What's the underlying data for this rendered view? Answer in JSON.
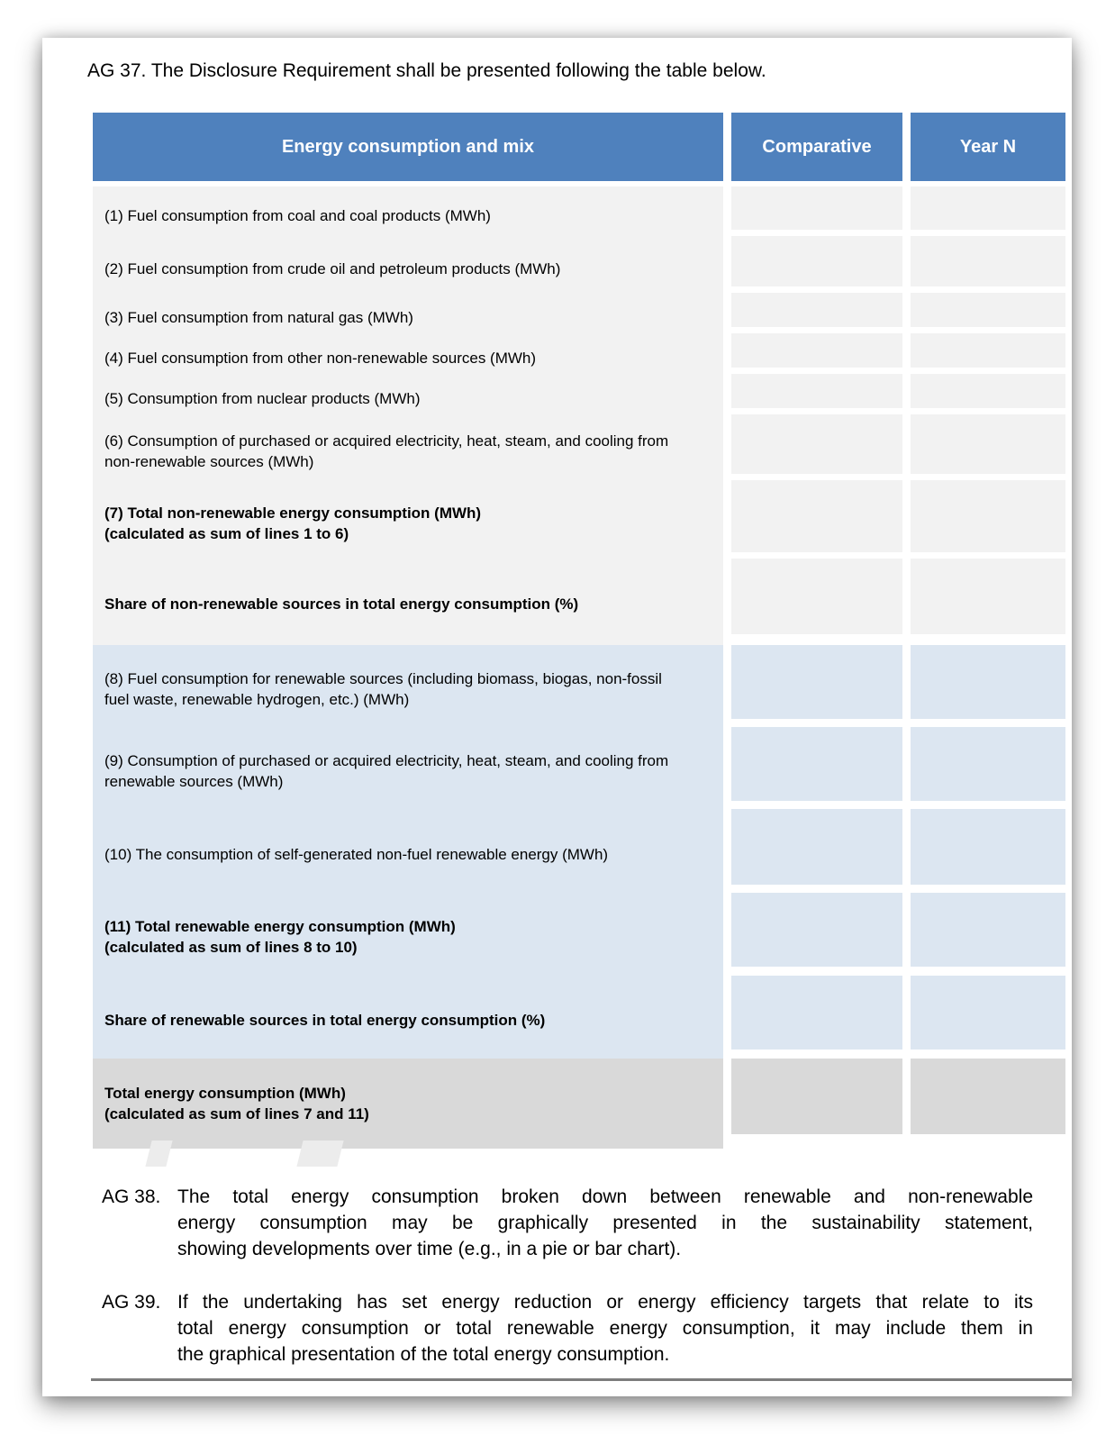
{
  "page": {
    "heading": "AG 37. The Disclosure Requirement shall be presented following the table below.",
    "table": {
      "columns": [
        "Energy consumption and mix",
        "Comparative",
        "Year N"
      ],
      "rows": [
        {
          "label": "(1) Fuel consumption from coal and coal products (MWh)",
          "sublabel": "",
          "bold": false,
          "section": "nonrenewable",
          "comparative": "",
          "year_n": ""
        },
        {
          "label": "(2) Fuel consumption from crude oil and petroleum products (MWh)",
          "sublabel": "",
          "bold": false,
          "section": "nonrenewable",
          "comparative": "",
          "year_n": ""
        },
        {
          "label": "(3) Fuel consumption from natural gas (MWh)",
          "sublabel": "",
          "bold": false,
          "section": "nonrenewable",
          "comparative": "",
          "year_n": ""
        },
        {
          "label": "(4) Fuel consumption from other non-renewable sources (MWh)",
          "sublabel": "",
          "bold": false,
          "section": "nonrenewable",
          "comparative": "",
          "year_n": ""
        },
        {
          "label": "(5) Consumption from nuclear products (MWh)",
          "sublabel": "",
          "bold": false,
          "section": "nonrenewable",
          "comparative": "",
          "year_n": ""
        },
        {
          "label": "(6) Consumption of purchased or acquired electricity, heat, steam, and cooling from non-renewable sources (MWh)",
          "sublabel": "",
          "bold": false,
          "section": "nonrenewable",
          "comparative": "",
          "year_n": ""
        },
        {
          "label": "(7) Total non-renewable energy consumption (MWh)",
          "sublabel": "(calculated as sum of lines 1 to 6)",
          "bold": true,
          "section": "nonrenewable",
          "comparative": "",
          "year_n": ""
        },
        {
          "label": "Share of non-renewable sources in total energy consumption (%)",
          "sublabel": "",
          "bold": true,
          "section": "nonrenewable",
          "comparative": "",
          "year_n": ""
        },
        {
          "label": "(8) Fuel consumption for renewable sources (including biomass, biogas, non-fossil fuel waste, renewable hydrogen, etc.) (MWh)",
          "sublabel": "",
          "bold": false,
          "section": "renewable",
          "comparative": "",
          "year_n": ""
        },
        {
          "label": "(9) Consumption of purchased or acquired electricity, heat, steam, and cooling from renewable sources (MWh)",
          "sublabel": "",
          "bold": false,
          "section": "renewable",
          "comparative": "",
          "year_n": ""
        },
        {
          "label": "(10) The consumption of self-generated non-fuel renewable energy (MWh)",
          "sublabel": "",
          "bold": false,
          "section": "renewable",
          "comparative": "",
          "year_n": ""
        },
        {
          "label": "(11) Total renewable energy consumption (MWh)",
          "sublabel": "(calculated as sum of lines 8 to 10)",
          "bold": true,
          "section": "renewable",
          "comparative": "",
          "year_n": ""
        },
        {
          "label": "Share of renewable sources in total energy consumption (%)",
          "sublabel": "",
          "bold": true,
          "section": "renewable",
          "comparative": "",
          "year_n": ""
        },
        {
          "label": "Total energy consumption (MWh)",
          "sublabel": "(calculated as sum of lines 7 and 11)",
          "bold": true,
          "section": "total",
          "comparative": "",
          "year_n": ""
        }
      ]
    },
    "paragraphs": [
      {
        "ref": "AG 38.",
        "lines": [
          "The total energy consumption broken down between renewable and non-renewable",
          "energy consumption may be graphically presented in the sustainability statement,",
          "showing developments over time (e.g., in a pie or bar chart)."
        ]
      },
      {
        "ref": "AG 39.",
        "lines": [
          "If the undertaking has set energy reduction or energy efficiency targets that relate to its",
          "total energy consumption or total renewable energy consumption, it may include them in",
          "the graphical presentation of the total energy consumption."
        ]
      }
    ],
    "colors": {
      "header_bg": "#4f81bd",
      "header_text": "#ffffff",
      "row_nonrenewable_bg": "#f2f2f2",
      "row_renewable_bg": "#dce6f1",
      "row_total_bg": "#d9d9d9",
      "footer_rule": "#7d7d7d",
      "watermark": "#ececec"
    }
  }
}
